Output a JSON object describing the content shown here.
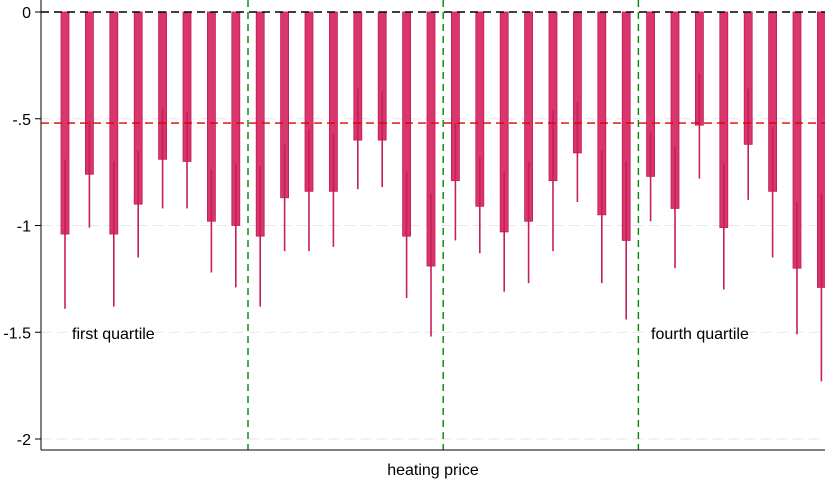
{
  "chart_data": {
    "type": "bar",
    "title": "",
    "xlabel": "heating price",
    "ylabel": "",
    "ylim": [
      -2.05,
      0.03
    ],
    "yticks": [
      0,
      -0.5,
      -1,
      -1.5,
      -2
    ],
    "ytick_labels": [
      "0",
      "-.5",
      "-1",
      "-1.5",
      "-2"
    ],
    "grid": true,
    "reference_lines": {
      "zero": 0,
      "mean": -0.52,
      "group_separators_after_bar": [
        8,
        16,
        24
      ]
    },
    "group_annotations": [
      "first quartile",
      "fourth quartile"
    ],
    "bars": [
      {
        "value": -1.04,
        "ci": [
          -1.39,
          -0.69
        ]
      },
      {
        "value": -0.76,
        "ci": [
          -1.01,
          -0.51
        ]
      },
      {
        "value": -1.04,
        "ci": [
          -1.38,
          -0.7
        ]
      },
      {
        "value": -0.9,
        "ci": [
          -1.15,
          -0.65
        ]
      },
      {
        "value": -0.69,
        "ci": [
          -0.92,
          -0.45
        ]
      },
      {
        "value": -0.7,
        "ci": [
          -0.92,
          -0.47
        ]
      },
      {
        "value": -0.98,
        "ci": [
          -1.22,
          -0.74
        ]
      },
      {
        "value": -1.0,
        "ci": [
          -1.29,
          -0.71
        ]
      },
      {
        "value": -1.05,
        "ci": [
          -1.38,
          -0.72
        ]
      },
      {
        "value": -0.87,
        "ci": [
          -1.12,
          -0.62
        ]
      },
      {
        "value": -0.84,
        "ci": [
          -1.12,
          -0.55
        ]
      },
      {
        "value": -0.84,
        "ci": [
          -1.1,
          -0.57
        ]
      },
      {
        "value": -0.6,
        "ci": [
          -0.83,
          -0.36
        ]
      },
      {
        "value": -0.6,
        "ci": [
          -0.82,
          -0.37
        ]
      },
      {
        "value": -1.05,
        "ci": [
          -1.34,
          -0.75
        ]
      },
      {
        "value": -1.19,
        "ci": [
          -1.52,
          -0.85
        ]
      },
      {
        "value": -0.79,
        "ci": [
          -1.07,
          -0.52
        ]
      },
      {
        "value": -0.91,
        "ci": [
          -1.13,
          -0.68
        ]
      },
      {
        "value": -1.03,
        "ci": [
          -1.31,
          -0.75
        ]
      },
      {
        "value": -0.98,
        "ci": [
          -1.27,
          -0.7
        ]
      },
      {
        "value": -0.79,
        "ci": [
          -1.12,
          -0.46
        ]
      },
      {
        "value": -0.66,
        "ci": [
          -0.89,
          -0.42
        ]
      },
      {
        "value": -0.95,
        "ci": [
          -1.27,
          -0.65
        ]
      },
      {
        "value": -1.07,
        "ci": [
          -1.44,
          -0.7
        ]
      },
      {
        "value": -0.77,
        "ci": [
          -0.98,
          -0.56
        ]
      },
      {
        "value": -0.92,
        "ci": [
          -1.2,
          -0.63
        ]
      },
      {
        "value": -0.53,
        "ci": [
          -0.78,
          -0.29
        ]
      },
      {
        "value": -1.01,
        "ci": [
          -1.3,
          -0.71
        ]
      },
      {
        "value": -0.62,
        "ci": [
          -0.88,
          -0.36
        ]
      },
      {
        "value": -0.84,
        "ci": [
          -1.15,
          -0.54
        ]
      },
      {
        "value": -1.2,
        "ci": [
          -1.51,
          -0.89
        ]
      },
      {
        "value": -1.29,
        "ci": [
          -1.73,
          -0.85
        ]
      }
    ],
    "colors": {
      "bar": "#d9366e",
      "bar_edge": "#c21a57",
      "ci": "#c61d5f",
      "zero_line": "#000000",
      "mean_line": "#e00000",
      "separator": "#008800",
      "grid": "#e6e6e6"
    }
  }
}
